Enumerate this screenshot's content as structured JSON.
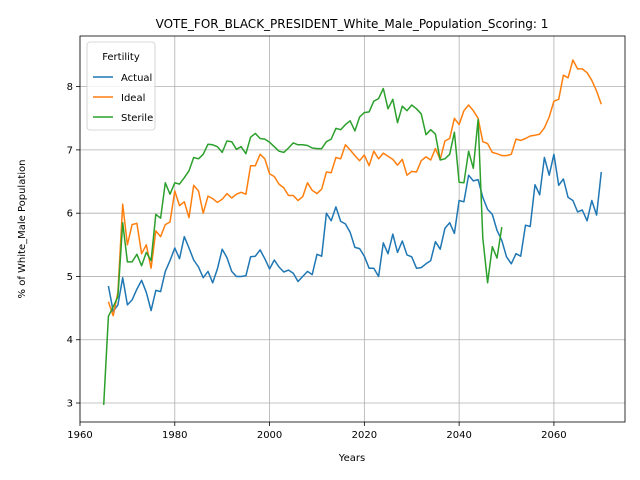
{
  "chart_data": {
    "type": "line",
    "title": "VOTE_FOR_BLACK_PRESIDENT_White_Male_Population_Scoring: 1",
    "xlabel": "Years",
    "ylabel": "% of White_Male Population",
    "xlim": [
      1960,
      2075
    ],
    "ylim": [
      2.7,
      8.8
    ],
    "xticks": [
      1960,
      1980,
      2000,
      2020,
      2040,
      2060
    ],
    "yticks": [
      3,
      4,
      5,
      6,
      7,
      8
    ],
    "grid": true,
    "legend": {
      "title": "Fertility",
      "placement": "top-left"
    },
    "series": [
      {
        "name": "Actual",
        "color": "#1f77b4",
        "x": [
          1966,
          1967,
          1968,
          1969,
          1970,
          1971,
          1972,
          1973,
          1974,
          1975,
          1976,
          1977,
          1978,
          1979,
          1980,
          1981,
          1982,
          1983,
          1984,
          1985,
          1986,
          1987,
          1988,
          1989,
          1990,
          1991,
          1992,
          1993,
          1994,
          1995,
          1996,
          1997,
          1998,
          1999,
          2000,
          2001,
          2002,
          2003,
          2004,
          2005,
          2006,
          2007,
          2008,
          2009,
          2010,
          2011,
          2012,
          2013,
          2014,
          2015,
          2016,
          2017,
          2018,
          2019,
          2020,
          2021,
          2022,
          2023,
          2024,
          2025,
          2026,
          2027,
          2028,
          2029,
          2030,
          2031,
          2032,
          2033,
          2034,
          2035,
          2036,
          2037,
          2038,
          2039,
          2040,
          2041,
          2042,
          2043,
          2044,
          2045,
          2046,
          2047,
          2048,
          2049,
          2050,
          2051,
          2052,
          2053,
          2054,
          2055,
          2056,
          2057,
          2058,
          2059,
          2060,
          2061,
          2062,
          2063,
          2064,
          2065,
          2066,
          2067,
          2068,
          2069,
          2070
        ],
        "y": [
          4.85,
          4.45,
          4.55,
          4.98,
          4.55,
          4.63,
          4.8,
          4.94,
          4.75,
          4.46,
          4.78,
          4.76,
          5.08,
          5.25,
          5.45,
          5.28,
          5.63,
          5.45,
          5.26,
          5.15,
          4.98,
          5.08,
          4.9,
          5.12,
          5.43,
          5.3,
          5.08,
          5.0,
          5.0,
          5.01,
          5.31,
          5.32,
          5.42,
          5.28,
          5.12,
          5.26,
          5.15,
          5.07,
          5.1,
          5.05,
          4.92,
          5.0,
          5.08,
          5.03,
          5.35,
          5.32,
          6.0,
          5.88,
          6.1,
          5.87,
          5.83,
          5.7,
          5.46,
          5.44,
          5.32,
          5.13,
          5.13,
          5.0,
          5.53,
          5.36,
          5.67,
          5.38,
          5.56,
          5.34,
          5.31,
          5.13,
          5.14,
          5.2,
          5.25,
          5.55,
          5.43,
          5.76,
          5.85,
          5.68,
          6.2,
          6.18,
          6.6,
          6.51,
          6.53,
          6.25,
          6.06,
          5.98,
          5.73,
          5.57,
          5.31,
          5.2,
          5.36,
          5.32,
          5.81,
          5.79,
          6.45,
          6.29,
          6.88,
          6.6,
          6.93,
          6.44,
          6.54,
          6.25,
          6.2,
          6.02,
          6.05,
          5.88,
          6.2,
          5.97,
          6.65
        ]
      },
      {
        "name": "Ideal",
        "color": "#ff7f0e",
        "x": [
          1966,
          1967,
          1968,
          1969,
          1970,
          1971,
          1972,
          1973,
          1974,
          1975,
          1976,
          1977,
          1978,
          1979,
          1980,
          1981,
          1982,
          1983,
          1984,
          1985,
          1986,
          1987,
          1988,
          1989,
          1990,
          1991,
          1992,
          1993,
          1994,
          1995,
          1996,
          1997,
          1998,
          1999,
          2000,
          2001,
          2002,
          2003,
          2004,
          2005,
          2006,
          2007,
          2008,
          2009,
          2010,
          2011,
          2012,
          2013,
          2014,
          2015,
          2016,
          2017,
          2018,
          2019,
          2020,
          2021,
          2022,
          2023,
          2024,
          2025,
          2026,
          2027,
          2028,
          2029,
          2030,
          2031,
          2032,
          2033,
          2034,
          2035,
          2036,
          2037,
          2038,
          2039,
          2040,
          2041,
          2042,
          2043,
          2044,
          2045,
          2046,
          2047,
          2048,
          2049,
          2050,
          2051,
          2052,
          2053,
          2054,
          2055,
          2056,
          2057,
          2058,
          2059,
          2060,
          2061,
          2062,
          2063,
          2064,
          2065,
          2066,
          2067,
          2068,
          2069,
          2070
        ],
        "y": [
          4.6,
          4.38,
          4.75,
          6.14,
          5.5,
          5.82,
          5.84,
          5.36,
          5.5,
          5.13,
          5.72,
          5.63,
          5.82,
          5.86,
          6.35,
          6.12,
          6.18,
          5.93,
          6.44,
          6.35,
          6.0,
          6.27,
          6.23,
          6.17,
          6.22,
          6.31,
          6.24,
          6.3,
          6.33,
          6.3,
          6.75,
          6.75,
          6.93,
          6.86,
          6.62,
          6.58,
          6.46,
          6.4,
          6.28,
          6.28,
          6.2,
          6.26,
          6.48,
          6.36,
          6.31,
          6.38,
          6.65,
          6.64,
          6.88,
          6.86,
          7.08,
          7.0,
          6.91,
          6.83,
          6.92,
          6.75,
          6.98,
          6.86,
          6.95,
          6.9,
          6.85,
          6.76,
          6.85,
          6.6,
          6.66,
          6.65,
          6.83,
          6.89,
          6.84,
          7.02,
          6.85,
          7.14,
          7.18,
          7.5,
          7.4,
          7.62,
          7.71,
          7.62,
          7.5,
          7.13,
          7.1,
          6.96,
          6.94,
          6.91,
          6.91,
          6.93,
          7.17,
          7.15,
          7.18,
          7.22,
          7.23,
          7.25,
          7.35,
          7.52,
          7.77,
          7.8,
          8.18,
          8.14,
          8.42,
          8.28,
          8.28,
          8.22,
          8.1,
          7.93,
          7.72
        ]
      },
      {
        "name": "Sterile",
        "color": "#2ca02c",
        "x": [
          1965,
          1966,
          1967,
          1968,
          1969,
          1970,
          1971,
          1972,
          1973,
          1974,
          1975,
          1976,
          1977,
          1978,
          1979,
          1980,
          1981,
          1982,
          1983,
          1984,
          1985,
          1986,
          1987,
          1988,
          1989,
          1990,
          1991,
          1992,
          1993,
          1994,
          1995,
          1996,
          1997,
          1998,
          1999,
          2000,
          2001,
          2002,
          2003,
          2004,
          2005,
          2006,
          2007,
          2008,
          2009,
          2010,
          2011,
          2012,
          2013,
          2014,
          2015,
          2016,
          2017,
          2018,
          2019,
          2020,
          2021,
          2022,
          2023,
          2024,
          2025,
          2026,
          2027,
          2028,
          2029,
          2030,
          2031,
          2032,
          2033,
          2034,
          2035,
          2036,
          2037,
          2038,
          2039,
          2040,
          2041,
          2042,
          2043,
          2044,
          2045,
          2046,
          2047,
          2048,
          2049
        ],
        "y": [
          2.97,
          4.37,
          4.52,
          4.68,
          5.85,
          5.23,
          5.23,
          5.35,
          5.17,
          5.38,
          5.25,
          5.98,
          5.92,
          6.48,
          6.3,
          6.48,
          6.46,
          6.56,
          6.67,
          6.88,
          6.86,
          6.93,
          7.09,
          7.08,
          7.05,
          6.96,
          7.14,
          7.13,
          7.01,
          7.05,
          6.94,
          7.2,
          7.26,
          7.18,
          7.17,
          7.12,
          7.05,
          6.98,
          6.96,
          7.03,
          7.11,
          7.08,
          7.08,
          7.07,
          7.03,
          7.02,
          7.02,
          7.13,
          7.17,
          7.34,
          7.32,
          7.4,
          7.46,
          7.3,
          7.52,
          7.59,
          7.6,
          7.77,
          7.81,
          7.97,
          7.65,
          7.8,
          7.43,
          7.69,
          7.62,
          7.71,
          7.65,
          7.57,
          7.24,
          7.32,
          7.25,
          6.84,
          6.86,
          6.93,
          7.28,
          6.49,
          6.48,
          6.98,
          6.71,
          7.48,
          5.61,
          4.9,
          5.47,
          5.29,
          5.78
        ]
      }
    ]
  }
}
